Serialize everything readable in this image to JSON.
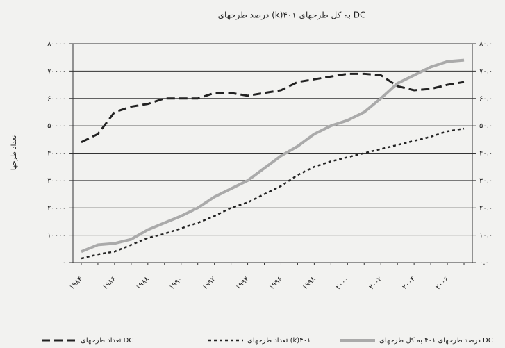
{
  "chart_data": {
    "type": "line",
    "title": "درصد طرحهای (k)۴۰۱ به کل طرحهای DC",
    "ylabel": "تعداد طرحها",
    "categories": [
      "۱۹۸۴",
      null,
      "۱۹۸۶",
      null,
      "۱۹۸۸",
      null,
      "۱۹۹۰",
      null,
      "۱۹۹۲",
      null,
      "۱۹۹۴",
      null,
      "۱۹۹۶",
      null,
      "۱۹۹۸",
      null,
      "۲۰۰۰",
      null,
      "۲۰۰۲",
      null,
      "۲۰۰۴",
      null,
      "۲۰۰۶",
      null
    ],
    "series": [
      {
        "name": "تعداد طرحهای DC",
        "color": "#222222",
        "style": "dashed",
        "values": [
          44000,
          47000,
          55000,
          57000,
          58000,
          60000,
          60000,
          60000,
          62000,
          62000,
          61000,
          62000,
          63000,
          66000,
          67000,
          68000,
          69000,
          69000,
          68500,
          64500,
          63000,
          63500,
          65000,
          66000
        ]
      },
      {
        "name": "تعداد طرحهای (k)۴۰۱",
        "color": "#222222",
        "style": "dotted",
        "values": [
          1500,
          3000,
          4000,
          6500,
          9000,
          10500,
          12500,
          14500,
          17000,
          20000,
          22000,
          25000,
          28000,
          32000,
          35000,
          37000,
          38500,
          40000,
          41500,
          43000,
          44500,
          46000,
          48000,
          49000
        ]
      },
      {
        "name": "درصد طرحهای ۴۰۱ به کل طرحهای DC",
        "color": "#aaaaaa",
        "style": "solid",
        "axis": "y2",
        "values": [
          4,
          6.5,
          7,
          8.5,
          12,
          14.5,
          17,
          20,
          24,
          27,
          30,
          34.5,
          39,
          42.5,
          47,
          50,
          52,
          55,
          60,
          65.5,
          68.5,
          71.5,
          73.5,
          74
        ]
      }
    ],
    "ylim": [
      0,
      80000
    ],
    "yticks": [
      {
        "value": 0,
        "label": "۰"
      },
      {
        "value": 10000,
        "label": "۱۰۰۰۰"
      },
      {
        "value": 20000,
        "label": "۲۰۰۰۰"
      },
      {
        "value": 30000,
        "label": "۳۰۰۰۰"
      },
      {
        "value": 40000,
        "label": "۴۰۰۰۰"
      },
      {
        "value": 50000,
        "label": "۵۰۰۰۰"
      },
      {
        "value": 60000,
        "label": "۶۰۰۰۰"
      },
      {
        "value": 70000,
        "label": "۷۰۰۰۰"
      },
      {
        "value": 80000,
        "label": "۸۰۰۰۰"
      }
    ],
    "y2lim": [
      0,
      80
    ],
    "y2ticks": [
      {
        "value": 0,
        "label": "۰.۰"
      },
      {
        "value": 10,
        "label": "۱۰.۰"
      },
      {
        "value": 20,
        "label": "۲۰.۰"
      },
      {
        "value": 30,
        "label": "۳۰.۰"
      },
      {
        "value": 40,
        "label": "۴۰.۰"
      },
      {
        "value": 50,
        "label": "۵۰.۰"
      },
      {
        "value": 60,
        "label": "۶۰.۰"
      },
      {
        "value": 70,
        "label": "۷۰.۰"
      },
      {
        "value": 80,
        "label": "۸۰.۰"
      }
    ],
    "grid": true
  }
}
